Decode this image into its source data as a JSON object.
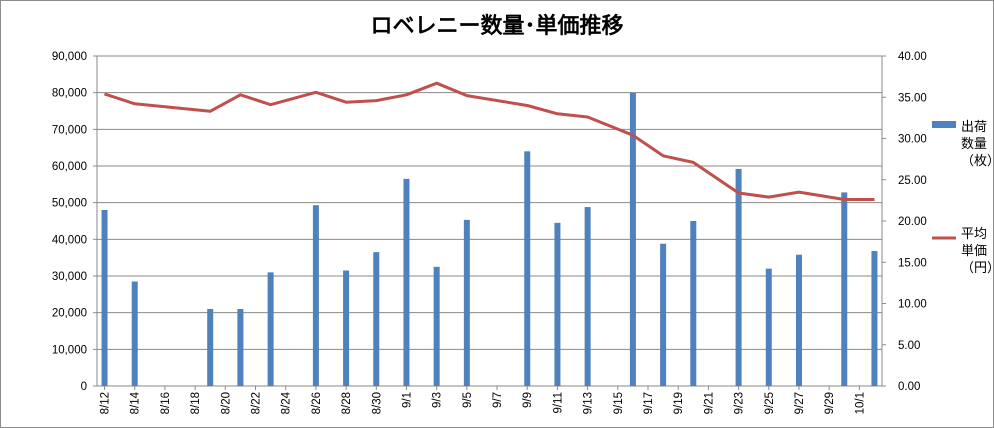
{
  "chart_data": {
    "type": "bar",
    "title": "ロベレニー数量･単価推移",
    "categories": [
      "8/12",
      "8/14",
      "8/16",
      "8/18",
      "8/20",
      "8/22",
      "8/24",
      "8/26",
      "8/28",
      "8/30",
      "9/1",
      "9/3",
      "9/5",
      "9/7",
      "9/9",
      "9/11",
      "9/13",
      "9/15",
      "9/17",
      "9/19",
      "9/21",
      "9/23",
      "9/25",
      "9/27",
      "9/29",
      "10/1"
    ],
    "x_axis": {
      "tick_labels": [
        "8/12",
        "8/14",
        "8/16",
        "8/18",
        "8/20",
        "8/22",
        "8/24",
        "8/26",
        "8/28",
        "8/30",
        "9/1",
        "9/3",
        "9/5",
        "9/7",
        "9/9",
        "9/11",
        "9/13",
        "9/15",
        "9/17",
        "9/19",
        "9/21",
        "9/23",
        "9/25",
        "9/27",
        "9/29",
        "10/1"
      ],
      "start_date": "8/12",
      "end_date": "10/2"
    },
    "y_left": {
      "ylim": [
        0,
        90000
      ],
      "tick_labels": [
        "0",
        "10,000",
        "20,000",
        "30,000",
        "40,000",
        "50,000",
        "60,000",
        "70,000",
        "80,000",
        "90,000"
      ],
      "ticks": [
        0,
        10000,
        20000,
        30000,
        40000,
        50000,
        60000,
        70000,
        80000,
        90000
      ]
    },
    "y_right": {
      "ylim": [
        0,
        40
      ],
      "tick_labels": [
        "0.00",
        "5.00",
        "10.00",
        "15.00",
        "20.00",
        "25.00",
        "30.00",
        "35.00",
        "40.00"
      ],
      "ticks": [
        0,
        5,
        10,
        15,
        20,
        25,
        30,
        35,
        40
      ]
    },
    "grid": true,
    "legend_position": "right",
    "series": [
      {
        "name": "出荷数量（枚）",
        "legend_lines": [
          "出荷",
          "数量",
          "（枚）"
        ],
        "kind": "bar",
        "axis": "left",
        "color": "#4f81bd",
        "points": [
          {
            "x": "8/12",
            "y": 48000
          },
          {
            "x": "8/14",
            "y": 28500
          },
          {
            "x": "8/19",
            "y": 21000
          },
          {
            "x": "8/21",
            "y": 21000
          },
          {
            "x": "8/23",
            "y": 31000
          },
          {
            "x": "8/26",
            "y": 49300
          },
          {
            "x": "8/28",
            "y": 31500
          },
          {
            "x": "8/30",
            "y": 36500
          },
          {
            "x": "9/1",
            "y": 56500
          },
          {
            "x": "9/3",
            "y": 32500
          },
          {
            "x": "9/5",
            "y": 45300
          },
          {
            "x": "9/9",
            "y": 64000
          },
          {
            "x": "9/11",
            "y": 44500
          },
          {
            "x": "9/13",
            "y": 48800
          },
          {
            "x": "9/16",
            "y": 80000
          },
          {
            "x": "9/18",
            "y": 38800
          },
          {
            "x": "9/20",
            "y": 45000
          },
          {
            "x": "9/23",
            "y": 59200
          },
          {
            "x": "9/25",
            "y": 32000
          },
          {
            "x": "9/27",
            "y": 35800
          },
          {
            "x": "9/30",
            "y": 52800
          },
          {
            "x": "10/2",
            "y": 36800
          }
        ]
      },
      {
        "name": "平均単価（円）",
        "legend_lines": [
          "平均",
          "単価",
          "（円）"
        ],
        "kind": "line",
        "axis": "right",
        "color": "#c0504d",
        "points": [
          {
            "x": "8/12",
            "y": 35.4
          },
          {
            "x": "8/14",
            "y": 34.2
          },
          {
            "x": "8/19",
            "y": 33.3
          },
          {
            "x": "8/21",
            "y": 35.3
          },
          {
            "x": "8/23",
            "y": 34.1
          },
          {
            "x": "8/26",
            "y": 35.6
          },
          {
            "x": "8/28",
            "y": 34.4
          },
          {
            "x": "8/30",
            "y": 34.6
          },
          {
            "x": "9/1",
            "y": 35.3
          },
          {
            "x": "9/3",
            "y": 36.7
          },
          {
            "x": "9/5",
            "y": 35.2
          },
          {
            "x": "9/9",
            "y": 34.0
          },
          {
            "x": "9/11",
            "y": 33.0
          },
          {
            "x": "9/13",
            "y": 32.6
          },
          {
            "x": "9/16",
            "y": 30.4
          },
          {
            "x": "9/18",
            "y": 27.9
          },
          {
            "x": "9/20",
            "y": 27.1
          },
          {
            "x": "9/23",
            "y": 23.4
          },
          {
            "x": "9/25",
            "y": 22.9
          },
          {
            "x": "9/27",
            "y": 23.5
          },
          {
            "x": "9/30",
            "y": 22.6
          },
          {
            "x": "10/2",
            "y": 22.6
          }
        ]
      }
    ]
  }
}
